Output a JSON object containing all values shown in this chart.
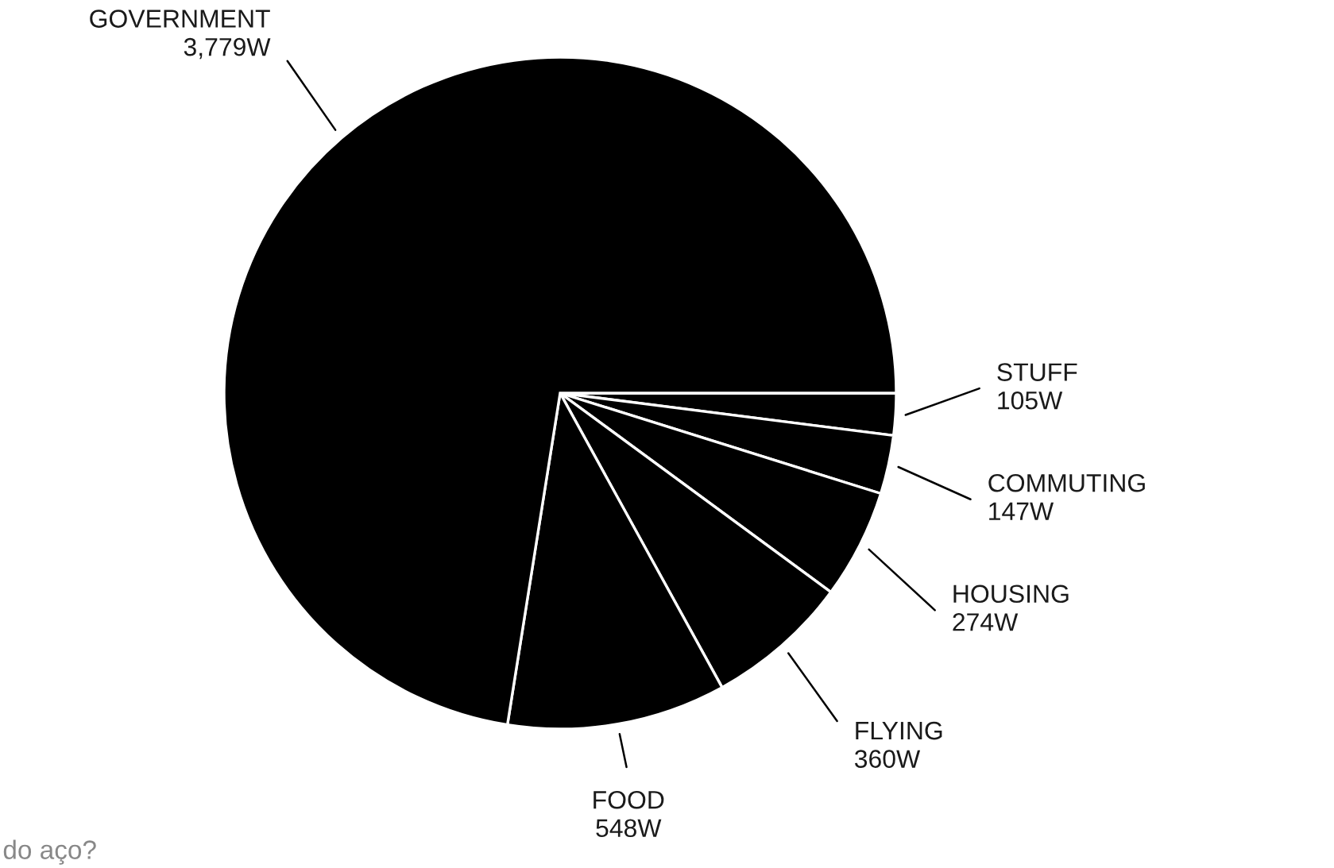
{
  "chart_data": {
    "type": "pie",
    "categories": [
      "STUFF",
      "COMMUTING",
      "HOUSING",
      "FLYING",
      "FOOD",
      "GOVERNMENT"
    ],
    "values": [
      105,
      147,
      274,
      360,
      548,
      3779
    ],
    "value_labels": [
      "105W",
      "147W",
      "274W",
      "360W",
      "548W",
      "3,779W"
    ],
    "colors": [
      "#000000",
      "#000000",
      "#000000",
      "#000000",
      "#000000",
      "#000000"
    ],
    "annotations": [
      "do aço?"
    ]
  }
}
